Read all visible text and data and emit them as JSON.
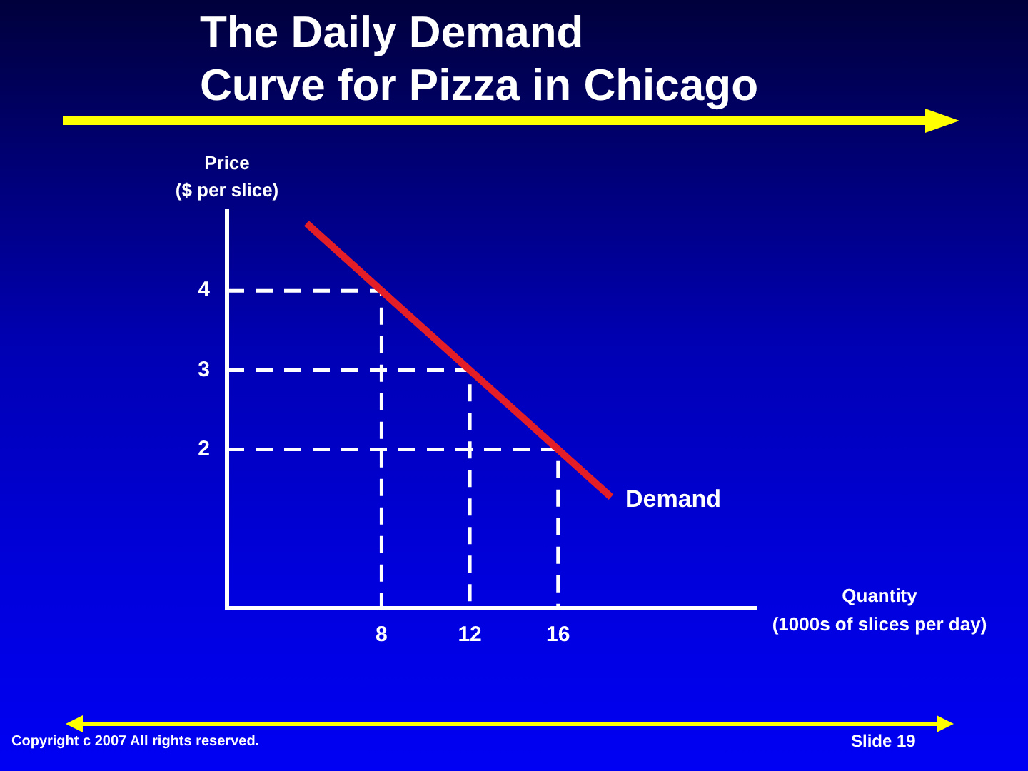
{
  "chart_data": {
    "type": "line",
    "title": "The Daily Demand\nCurve for Pizza in Chicago",
    "xlabel": "Quantity\n(1000s of slices per day)",
    "ylabel": "Price\n($ per slice)",
    "series": [
      {
        "name": "Demand",
        "color": "#e41e26",
        "x": [
          4.6,
          8,
          12,
          16,
          18.4
        ],
        "values": [
          4.85,
          4,
          3,
          2,
          1.4
        ],
        "line_style": "solid"
      },
      {
        "color": "#ffffff",
        "x": [
          1,
          8,
          8
        ],
        "values": [
          4,
          4,
          0
        ],
        "line_style": "dashed"
      },
      {
        "color": "#ffffff",
        "x": [
          1,
          12,
          12
        ],
        "values": [
          3,
          3,
          0
        ],
        "line_style": "dashed"
      },
      {
        "color": "#ffffff",
        "x": [
          1,
          16,
          16
        ],
        "values": [
          2,
          2,
          0
        ],
        "line_style": "dashed"
      }
    ],
    "xlim": [
      1,
      25
    ],
    "xticks": [
      8,
      12,
      16
    ],
    "ylim": [
      0,
      5
    ],
    "yticks": [
      2,
      3,
      4
    ],
    "grid": false,
    "legend": false,
    "marker": "none",
    "annotations": [
      "Copyright c 2007 All rights reserved.",
      "Slide 19"
    ]
  }
}
